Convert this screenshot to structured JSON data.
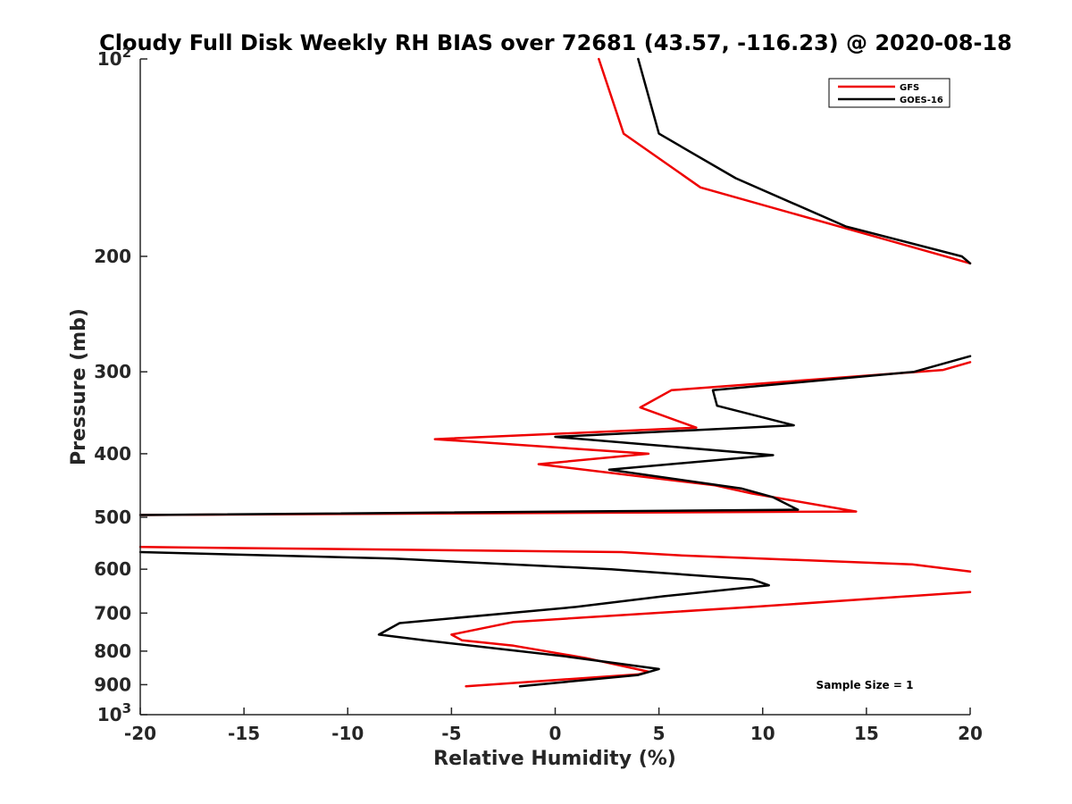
{
  "chart_data": {
    "type": "line",
    "title": "Cloudy Full Disk Weekly RH BIAS over 72681 (43.57, -116.23) @ 2020-08-18",
    "xlabel": "Relative Humidity (%)",
    "ylabel": "Pressure (mb)",
    "xlim": [
      -20,
      20
    ],
    "ylim": [
      100,
      1000
    ],
    "y_scale": "log",
    "y_reversed": true,
    "grid": false,
    "legend_position": "top-right",
    "x_ticks": [
      "-20",
      "-15",
      "-10",
      "-5",
      "0",
      "5",
      "10",
      "15",
      "20"
    ],
    "y_ticks": [
      {
        "value": 100,
        "base": "10",
        "exp": "2"
      },
      {
        "value": 200,
        "base": "200",
        "exp": ""
      },
      {
        "value": 300,
        "base": "300",
        "exp": ""
      },
      {
        "value": 400,
        "base": "400",
        "exp": ""
      },
      {
        "value": 500,
        "base": "500",
        "exp": ""
      },
      {
        "value": 600,
        "base": "600",
        "exp": ""
      },
      {
        "value": 700,
        "base": "700",
        "exp": ""
      },
      {
        "value": 800,
        "base": "800",
        "exp": ""
      },
      {
        "value": 900,
        "base": "900",
        "exp": ""
      },
      {
        "value": 1000,
        "base": "10",
        "exp": "3"
      }
    ],
    "annotation": "Sample Size = 1",
    "series": [
      {
        "name": "GFS",
        "color": "#ee0000",
        "points": [
          [
            2.1,
            100
          ],
          [
            3.3,
            130
          ],
          [
            7.0,
            157
          ],
          [
            20.0,
            205
          ],
          [
            null,
            208
          ],
          [
            20.0,
            290
          ],
          [
            18.7,
            298
          ],
          [
            5.6,
            320
          ],
          [
            4.1,
            340
          ],
          [
            6.8,
            365
          ],
          [
            -5.8,
            380
          ],
          [
            4.5,
            400
          ],
          [
            -0.8,
            415
          ],
          [
            7.7,
            447
          ],
          [
            9.5,
            460
          ],
          [
            14.5,
            490
          ],
          [
            -20.0,
            496
          ],
          [
            null,
            520
          ],
          [
            -20.0,
            555
          ],
          [
            3.2,
            565
          ],
          [
            6.2,
            572
          ],
          [
            17.2,
            590
          ],
          [
            20.0,
            605
          ],
          [
            null,
            620
          ],
          [
            20.0,
            650
          ],
          [
            9.5,
            685
          ],
          [
            -2.0,
            722
          ],
          [
            -5.0,
            755
          ],
          [
            -4.5,
            770
          ],
          [
            -2.0,
            785
          ],
          [
            1.5,
            820
          ],
          [
            4.5,
            860
          ],
          [
            4.0,
            868
          ],
          [
            -4.3,
            905
          ]
        ]
      },
      {
        "name": "GOES-16",
        "color": "#000000",
        "points": [
          [
            4.0,
            100
          ],
          [
            5.0,
            130
          ],
          [
            8.7,
            152
          ],
          [
            14.0,
            180
          ],
          [
            19.6,
            200
          ],
          [
            20.0,
            205
          ],
          [
            null,
            210
          ],
          [
            20.0,
            284
          ],
          [
            17.3,
            300
          ],
          [
            7.6,
            320
          ],
          [
            7.8,
            338
          ],
          [
            11.5,
            362
          ],
          [
            0.0,
            377
          ],
          [
            10.5,
            402
          ],
          [
            2.6,
            423
          ],
          [
            9.0,
            452
          ],
          [
            10.5,
            466
          ],
          [
            11.7,
            487
          ],
          [
            -20.0,
            496
          ],
          [
            null,
            520
          ],
          [
            -20.0,
            565
          ],
          [
            -7.8,
            578
          ],
          [
            2.7,
            600
          ],
          [
            9.5,
            622
          ],
          [
            10.3,
            635
          ],
          [
            5.2,
            660
          ],
          [
            1.0,
            685
          ],
          [
            -7.5,
            725
          ],
          [
            -8.5,
            755
          ],
          [
            -6.3,
            770
          ],
          [
            0.5,
            815
          ],
          [
            5.0,
            852
          ],
          [
            4.0,
            870
          ],
          [
            -1.7,
            905
          ]
        ]
      }
    ]
  }
}
